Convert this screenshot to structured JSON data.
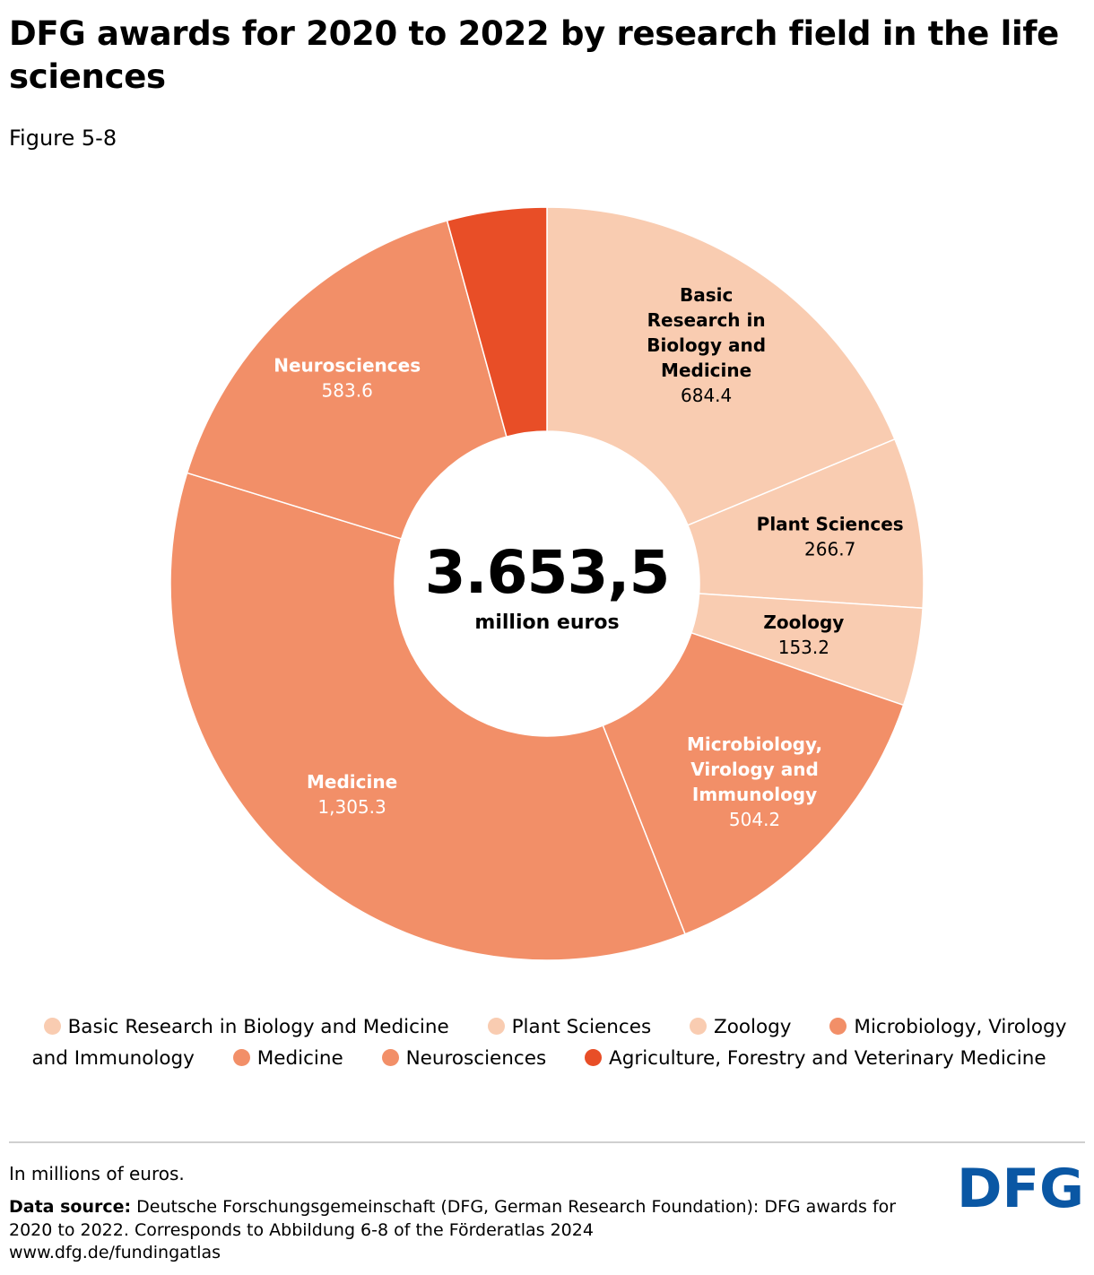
{
  "title": "DFG awards for 2020 to 2022 by research field in the life sciences",
  "subtitle": "Figure 5-8",
  "chart_data": {
    "type": "pie",
    "donut": true,
    "center_value": "3.653,5",
    "center_unit": "million euros",
    "slices": [
      {
        "name": "Basic Research in Biology and Medicine",
        "label_lines": [
          "Basic",
          "Research in",
          "Biology and",
          "Medicine"
        ],
        "value": 684.4,
        "value_label": "684.4",
        "color": "#f9ccb1",
        "text_color": "#000000"
      },
      {
        "name": "Plant Sciences",
        "label_lines": [
          "Plant Sciences"
        ],
        "value": 266.7,
        "value_label": "266.7",
        "color": "#f9ccb1",
        "text_color": "#000000"
      },
      {
        "name": "Zoology",
        "label_lines": [
          "Zoology"
        ],
        "value": 153.2,
        "value_label": "153.2",
        "color": "#f9ccb1",
        "text_color": "#000000"
      },
      {
        "name": "Microbiology, Virology and Immunology",
        "label_lines": [
          "Microbiology,",
          "Virology and",
          "Immunology"
        ],
        "value": 504.2,
        "value_label": "504.2",
        "color": "#f28f68",
        "text_color": "#ffffff"
      },
      {
        "name": "Medicine",
        "label_lines": [
          "Medicine"
        ],
        "value": 1305.3,
        "value_label": "1,305.3",
        "color": "#f28f68",
        "text_color": "#ffffff"
      },
      {
        "name": "Neurosciences",
        "label_lines": [
          "Neurosciences"
        ],
        "value": 583.6,
        "value_label": "583.6",
        "color": "#f28f68",
        "text_color": "#ffffff"
      },
      {
        "name": "Agriculture, Forestry and Veterinary Medicine",
        "label_lines": [],
        "value": 156.1,
        "value_label": "",
        "color": "#e84e27",
        "text_color": "#ffffff"
      }
    ],
    "legend": [
      {
        "label": "Basic Research in Biology and Medicine",
        "color": "#f9ccb1"
      },
      {
        "label": "Plant Sciences",
        "color": "#f9ccb1"
      },
      {
        "label": "Zoology",
        "color": "#f9ccb1"
      },
      {
        "label": "Microbiology, Virology and Immunology",
        "color": "#f28f68"
      },
      {
        "label": "Medicine",
        "color": "#f28f68"
      },
      {
        "label": "Neurosciences",
        "color": "#f28f68"
      },
      {
        "label": "Agriculture, Forestry and Veterinary Medicine",
        "color": "#e84e27"
      }
    ]
  },
  "footer": {
    "note": "In millions of euros.",
    "source_label": "Data source:",
    "source_text": "Deutsche Forschungsgemeinschaft (DFG, German Research Foundation): DFG awards for 2020 to 2022. Corresponds to Abbildung 6-8 of the Förderatlas 2024",
    "url": "www.dfg.de/fundingatlas",
    "logo_text": "DFG",
    "logo_color": "#0a57a4"
  }
}
